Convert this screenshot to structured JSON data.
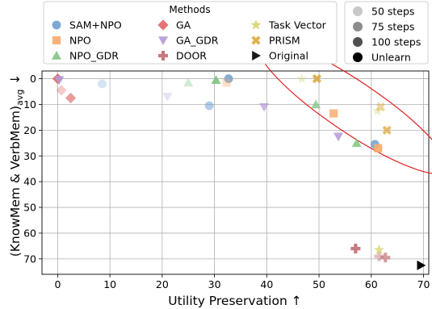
{
  "chart_data": {
    "type": "scatter",
    "xlabel": "Utility Preservation ↑",
    "ylabel_main": "(KnowMem & VerbMem)",
    "ylabel_sub": "avg",
    "ylabel_arrow": "↓",
    "xlim": [
      -3,
      71
    ],
    "ylim": [
      76,
      -3
    ],
    "y_inverted": true,
    "xticks": [
      0,
      10,
      20,
      30,
      40,
      50,
      60,
      70
    ],
    "yticks": [
      0,
      10,
      20,
      30,
      40,
      50,
      60,
      70
    ],
    "grid": true,
    "legend_methods": {
      "title": "Methods",
      "placement": "top-center",
      "entries": [
        {
          "name": "SAM+NPO",
          "marker": "circle",
          "color": "#6fa1cf"
        },
        {
          "name": "GA",
          "marker": "diamond",
          "color": "#e06666"
        },
        {
          "name": "Task Vector",
          "marker": "star",
          "color": "#d6d46d"
        },
        {
          "name": "NPO",
          "marker": "square",
          "color": "#f9a96a"
        },
        {
          "name": "GA_GDR",
          "marker": "triangle-down",
          "color": "#b49ad6"
        },
        {
          "name": "PRISM",
          "marker": "x-cross",
          "color": "#dca93c"
        },
        {
          "name": "NPO_GDR",
          "marker": "triangle-up",
          "color": "#7fc47e"
        },
        {
          "name": "DOOR",
          "marker": "plus",
          "color": "#c06a70"
        },
        {
          "name": "Original",
          "marker": "triangle-right",
          "color": "#000000"
        }
      ]
    },
    "legend_steps": {
      "placement": "top-right",
      "entries": [
        {
          "name": "50 steps",
          "color": "#c8c8c8"
        },
        {
          "name": "75 steps",
          "color": "#8c8c8c"
        },
        {
          "name": "100 steps",
          "color": "#505050"
        },
        {
          "name": "Unlearn",
          "color": "#000000"
        }
      ]
    },
    "series": [
      {
        "name": "SAM+NPO",
        "marker": "circle",
        "color": "#6fa1cf",
        "points": [
          {
            "x": 8.5,
            "y": 2,
            "alpha": 0.3
          },
          {
            "x": 29,
            "y": 10.5,
            "alpha": 0.55
          },
          {
            "x": 32.7,
            "y": 0,
            "alpha": 0.85
          },
          {
            "x": 60.7,
            "y": 25.5,
            "alpha": 0.85
          }
        ]
      },
      {
        "name": "NPO",
        "marker": "square",
        "color": "#f9a96a",
        "points": [
          {
            "x": 32.3,
            "y": 1.5,
            "alpha": 0.35
          },
          {
            "x": 52.8,
            "y": 13.5,
            "alpha": 0.8
          },
          {
            "x": 61.3,
            "y": 27,
            "alpha": 0.9
          }
        ]
      },
      {
        "name": "NPO_GDR",
        "marker": "triangle-up",
        "color": "#7fc47e",
        "points": [
          {
            "x": 25,
            "y": 1.5,
            "alpha": 0.35
          },
          {
            "x": 30.3,
            "y": 0.5,
            "alpha": 0.9
          },
          {
            "x": 49.4,
            "y": 10,
            "alpha": 0.75
          },
          {
            "x": 57.2,
            "y": 25,
            "alpha": 0.85
          }
        ]
      },
      {
        "name": "GA",
        "marker": "diamond",
        "color": "#e06666",
        "points": [
          {
            "x": 0,
            "y": 0,
            "alpha": 0.9
          },
          {
            "x": 0.7,
            "y": 4.5,
            "alpha": 0.35
          },
          {
            "x": 2.5,
            "y": 7.5,
            "alpha": 0.65
          }
        ]
      },
      {
        "name": "GA_GDR",
        "marker": "triangle-down",
        "color": "#b49ad6",
        "points": [
          {
            "x": 0.3,
            "y": 0.5,
            "alpha": 0.9
          },
          {
            "x": 21,
            "y": 7,
            "alpha": 0.3
          },
          {
            "x": 39.5,
            "y": 11,
            "alpha": 0.7
          },
          {
            "x": 53.7,
            "y": 22.5,
            "alpha": 0.85
          }
        ]
      },
      {
        "name": "DOOR",
        "marker": "plus",
        "color": "#c06a70",
        "points": [
          {
            "x": 57,
            "y": 66,
            "alpha": 0.9
          },
          {
            "x": 61.5,
            "y": 69,
            "alpha": 0.45
          },
          {
            "x": 62.7,
            "y": 69.5,
            "alpha": 0.65
          }
        ]
      },
      {
        "name": "Task Vector",
        "marker": "star",
        "color": "#d6d46d",
        "points": [
          {
            "x": 46.7,
            "y": 0,
            "alpha": 0.35
          },
          {
            "x": 61.5,
            "y": 66.5,
            "alpha": 0.75
          },
          {
            "x": 61.2,
            "y": 12.5,
            "alpha": 0.4
          }
        ]
      },
      {
        "name": "PRISM",
        "marker": "x-cross",
        "color": "#dca93c",
        "points": [
          {
            "x": 49.6,
            "y": 0,
            "alpha": 0.9
          },
          {
            "x": 61.8,
            "y": 11,
            "alpha": 0.5
          },
          {
            "x": 63,
            "y": 20,
            "alpha": 0.75
          }
        ]
      },
      {
        "name": "Original",
        "marker": "triangle-right",
        "color": "#000000",
        "points": [
          {
            "x": 69.5,
            "y": 72.5,
            "alpha": 1
          }
        ]
      }
    ],
    "annotation": {
      "type": "ellipse",
      "color": "#e02020",
      "center": [
        56.5,
        11
      ],
      "rx": 15,
      "ry": 4.5,
      "angle_deg": 34
    }
  }
}
